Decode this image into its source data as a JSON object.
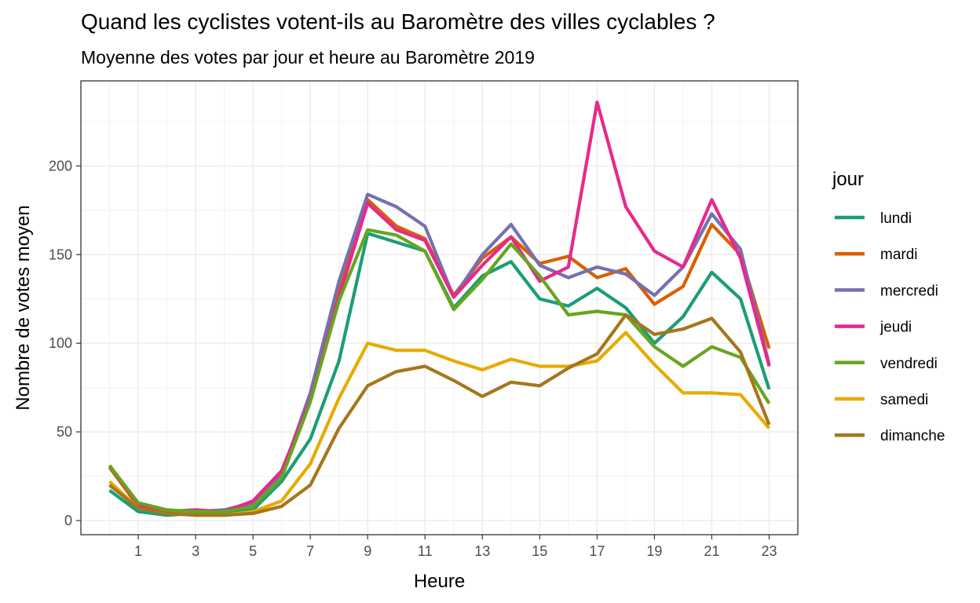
{
  "chart_data": {
    "type": "line",
    "title": "Quand les cyclistes votent-ils au Baromètre des villes cyclables ?",
    "subtitle": "Moyenne des votes par jour et heure au Baromètre 2019",
    "xlabel": "Heure",
    "ylabel": "Nombre de votes moyen",
    "xlim": [
      -1,
      24
    ],
    "ylim": [
      -8,
      248
    ],
    "x_ticks": [
      1,
      3,
      5,
      7,
      9,
      11,
      13,
      15,
      17,
      19,
      21,
      23
    ],
    "y_ticks": [
      0,
      50,
      100,
      150,
      200
    ],
    "grid": true,
    "legend": {
      "title": "jour",
      "position": "right"
    },
    "x": [
      0,
      1,
      2,
      3,
      4,
      5,
      6,
      7,
      8,
      9,
      10,
      11,
      12,
      13,
      14,
      15,
      16,
      17,
      18,
      19,
      20,
      21,
      22,
      23
    ],
    "series": [
      {
        "name": "lundi",
        "color": "#1B9E77",
        "values": [
          17,
          5,
          3,
          4,
          4,
          6,
          22,
          46,
          90,
          162,
          157,
          152,
          120,
          138,
          146,
          125,
          121,
          131,
          120,
          100,
          115,
          140,
          125,
          74
        ]
      },
      {
        "name": "mardi",
        "color": "#D95F02",
        "values": [
          30,
          8,
          5,
          5,
          5,
          9,
          25,
          70,
          130,
          181,
          166,
          159,
          127,
          148,
          160,
          145,
          149,
          137,
          142,
          122,
          132,
          167,
          150,
          97
        ]
      },
      {
        "name": "mercredi",
        "color": "#7570B3",
        "values": [
          31,
          9,
          5,
          5,
          6,
          10,
          26,
          72,
          135,
          184,
          177,
          166,
          126,
          150,
          167,
          144,
          137,
          143,
          139,
          127,
          143,
          173,
          153,
          88
        ]
      },
      {
        "name": "jeudi",
        "color": "#E7298A",
        "values": [
          31,
          9,
          5,
          6,
          5,
          11,
          28,
          68,
          126,
          179,
          164,
          158,
          126,
          144,
          160,
          135,
          143,
          236,
          177,
          152,
          143,
          181,
          148,
          87
        ]
      },
      {
        "name": "vendredi",
        "color": "#66A61E",
        "values": [
          31,
          10,
          6,
          5,
          5,
          8,
          24,
          67,
          124,
          164,
          161,
          152,
          119,
          136,
          156,
          138,
          116,
          118,
          116,
          98,
          87,
          98,
          92,
          66
        ]
      },
      {
        "name": "samedi",
        "color": "#E6AB02",
        "values": [
          22,
          7,
          4,
          3,
          3,
          5,
          11,
          32,
          69,
          100,
          96,
          96,
          90,
          85,
          91,
          87,
          87,
          90,
          106,
          88,
          72,
          72,
          71,
          52
        ]
      },
      {
        "name": "dimanche",
        "color": "#A6761D",
        "values": [
          20,
          7,
          4,
          3,
          3,
          4,
          8,
          20,
          52,
          76,
          84,
          87,
          79,
          70,
          78,
          76,
          86,
          94,
          116,
          105,
          108,
          114,
          95,
          54
        ]
      }
    ]
  }
}
